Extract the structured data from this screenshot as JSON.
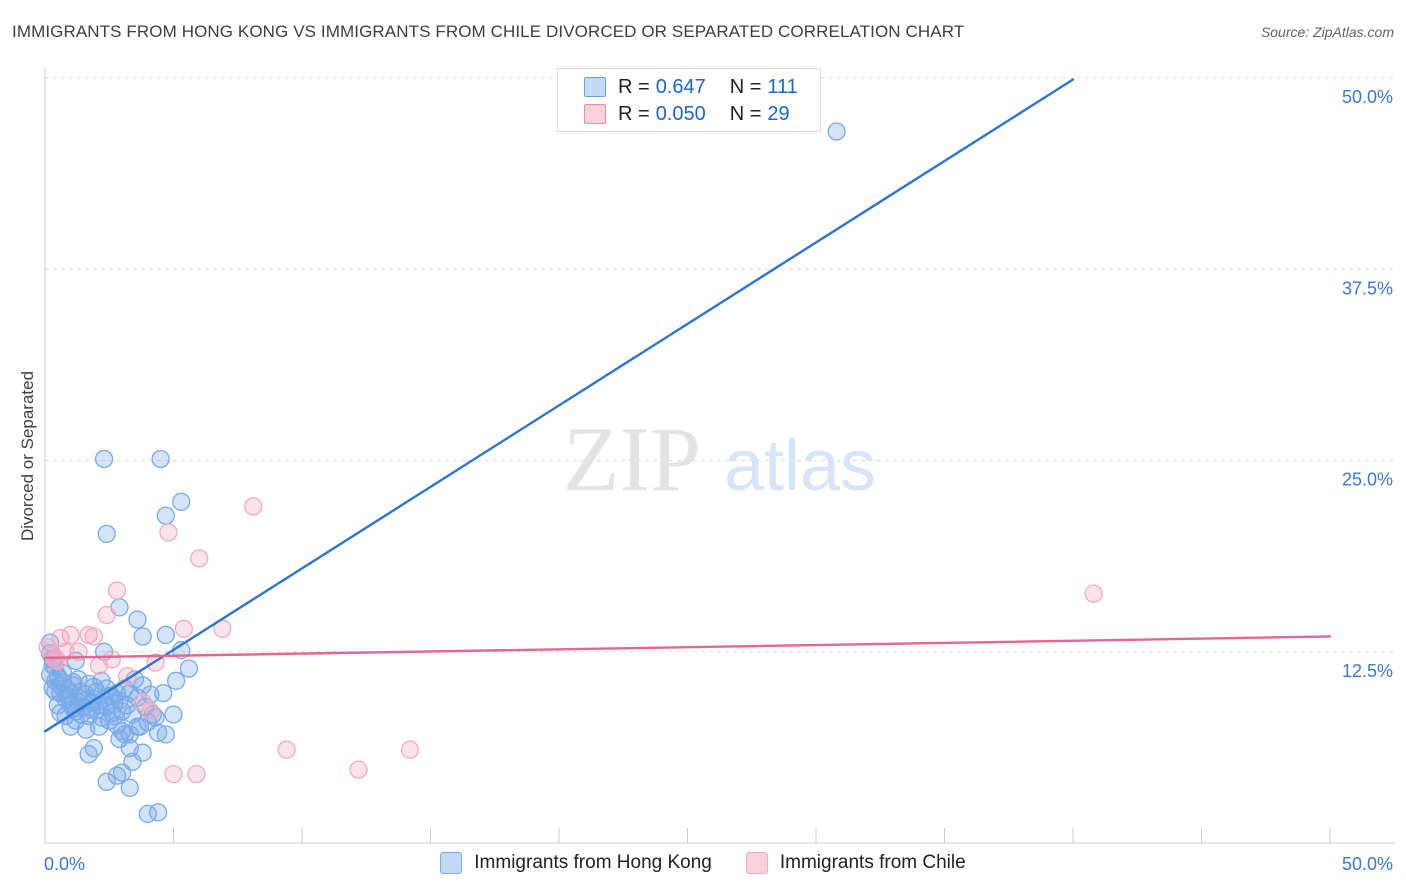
{
  "title": "IMMIGRANTS FROM HONG KONG VS IMMIGRANTS FROM CHILE DIVORCED OR SEPARATED CORRELATION CHART",
  "source": "Source: ZipAtlas.com",
  "watermark": {
    "zip": "ZIP",
    "atlas": "atlas"
  },
  "stats": [
    {
      "r_label": "R =",
      "r_value": "0.647",
      "n_label": "N =",
      "n_value": "111",
      "color": "#a8c8f0",
      "border": "#6a9fdc"
    },
    {
      "r_label": "R =",
      "r_value": "0.050",
      "n_label": "N =",
      "n_value": "29",
      "color": "#f8c4d4",
      "border": "#ee8aa8"
    }
  ],
  "chart_data": {
    "type": "scatter",
    "title": "IMMIGRANTS FROM HONG KONG VS IMMIGRANTS FROM CHILE DIVORCED OR SEPARATED CORRELATION CHART",
    "xlabel": "",
    "ylabel": "Divorced or Separated",
    "xlim": [
      0,
      50
    ],
    "ylim": [
      0,
      50
    ],
    "x_tick_labels": [
      "0.0%",
      "50.0%"
    ],
    "y_ticks": [
      12.5,
      25.0,
      37.5,
      50.0
    ],
    "y_tick_labels": [
      "12.5%",
      "25.0%",
      "37.5%",
      "50.0%"
    ],
    "grid": true,
    "legend_position": "bottom-center",
    "series": [
      {
        "name": "Immigrants from Hong Kong",
        "color": "#7aaae8",
        "line_color": "#2f74d0",
        "trend": {
          "x": [
            0,
            40
          ],
          "y": [
            7.3,
            49.9
          ]
        },
        "points": [
          [
            0.2,
            13.1
          ],
          [
            0.3,
            12.0
          ],
          [
            0.2,
            11.0
          ],
          [
            0.4,
            11.5
          ],
          [
            0.5,
            10.8
          ],
          [
            0.3,
            10.1
          ],
          [
            0.6,
            9.8
          ],
          [
            0.7,
            10.5
          ],
          [
            0.8,
            9.4
          ],
          [
            0.9,
            10.0
          ],
          [
            1.0,
            9.1
          ],
          [
            1.1,
            10.3
          ],
          [
            1.2,
            8.6
          ],
          [
            1.3,
            9.5
          ],
          [
            1.4,
            9.9
          ],
          [
            1.5,
            8.9
          ],
          [
            1.6,
            9.7
          ],
          [
            1.7,
            8.3
          ],
          [
            1.8,
            9.2
          ],
          [
            1.9,
            10.2
          ],
          [
            2.0,
            8.7
          ],
          [
            2.1,
            9.0
          ],
          [
            2.2,
            8.2
          ],
          [
            2.3,
            9.4
          ],
          [
            2.4,
            8.9
          ],
          [
            2.5,
            9.6
          ],
          [
            2.6,
            8.5
          ],
          [
            2.7,
            9.1
          ],
          [
            2.8,
            7.7
          ],
          [
            2.9,
            9.3
          ],
          [
            3.0,
            8.6
          ],
          [
            3.1,
            10.1
          ],
          [
            3.2,
            9.0
          ],
          [
            3.3,
            9.8
          ],
          [
            3.4,
            8.4
          ],
          [
            3.6,
            9.5
          ],
          [
            3.7,
            7.6
          ],
          [
            3.9,
            8.9
          ],
          [
            4.1,
            9.7
          ],
          [
            4.3,
            8.2
          ],
          [
            0.4,
            10.6
          ],
          [
            0.6,
            10.3
          ],
          [
            0.9,
            9.6
          ],
          [
            1.1,
            8.8
          ],
          [
            1.3,
            10.7
          ],
          [
            1.5,
            9.3
          ],
          [
            1.7,
            10.4
          ],
          [
            2.0,
            9.9
          ],
          [
            2.2,
            10.6
          ],
          [
            2.5,
            8.0
          ],
          [
            2.8,
            9.8
          ],
          [
            3.0,
            7.3
          ],
          [
            3.3,
            7.1
          ],
          [
            3.6,
            7.6
          ],
          [
            4.0,
            7.9
          ],
          [
            4.4,
            7.2
          ],
          [
            4.7,
            7.1
          ],
          [
            5.0,
            8.4
          ],
          [
            5.1,
            10.6
          ],
          [
            0.5,
            9.0
          ],
          [
            0.8,
            8.3
          ],
          [
            1.0,
            7.6
          ],
          [
            1.2,
            8.0
          ],
          [
            1.4,
            8.4
          ],
          [
            1.6,
            7.4
          ],
          [
            1.8,
            8.7
          ],
          [
            2.1,
            7.6
          ],
          [
            2.4,
            10.1
          ],
          [
            2.7,
            8.3
          ],
          [
            2.9,
            6.8
          ],
          [
            3.1,
            7.1
          ],
          [
            3.5,
            10.7
          ],
          [
            3.8,
            10.3
          ],
          [
            4.2,
            8.4
          ],
          [
            4.6,
            9.8
          ],
          [
            1.9,
            6.2
          ],
          [
            1.7,
            5.8
          ],
          [
            2.8,
            4.4
          ],
          [
            3.0,
            4.6
          ],
          [
            3.3,
            6.2
          ],
          [
            2.4,
            4.0
          ],
          [
            3.4,
            5.3
          ],
          [
            3.3,
            3.6
          ],
          [
            3.8,
            5.9
          ],
          [
            4.0,
            1.9
          ],
          [
            4.4,
            2.0
          ],
          [
            2.3,
            12.5
          ],
          [
            2.9,
            15.4
          ],
          [
            3.6,
            14.6
          ],
          [
            3.8,
            13.5
          ],
          [
            4.7,
            13.6
          ],
          [
            5.3,
            12.6
          ],
          [
            5.6,
            11.4
          ],
          [
            2.3,
            25.1
          ],
          [
            4.5,
            25.1
          ],
          [
            5.3,
            22.3
          ],
          [
            4.7,
            21.4
          ],
          [
            2.4,
            20.2
          ],
          [
            30.8,
            46.5
          ],
          [
            0.2,
            12.4
          ],
          [
            0.3,
            11.6
          ],
          [
            0.7,
            11.1
          ],
          [
            1.2,
            11.9
          ],
          [
            0.4,
            9.9
          ],
          [
            0.6,
            8.5
          ],
          [
            0.8,
            9.7
          ],
          [
            1.3,
            9.2
          ],
          [
            1.9,
            9.4
          ],
          [
            2.6,
            9.6
          ],
          [
            1.1,
            10.5
          ],
          [
            0.5,
            10.9
          ]
        ]
      },
      {
        "name": "Immigrants from Chile",
        "color": "#f4a9c0",
        "line_color": "#e5678e",
        "trend": {
          "x": [
            0,
            50
          ],
          "y": [
            12.1,
            13.5
          ]
        },
        "points": [
          [
            0.1,
            12.8
          ],
          [
            0.3,
            12.3
          ],
          [
            0.5,
            11.9
          ],
          [
            0.6,
            13.4
          ],
          [
            0.8,
            12.5
          ],
          [
            1.0,
            13.6
          ],
          [
            1.3,
            12.5
          ],
          [
            1.7,
            13.6
          ],
          [
            1.9,
            13.5
          ],
          [
            2.1,
            11.6
          ],
          [
            2.4,
            14.9
          ],
          [
            2.6,
            12.0
          ],
          [
            2.8,
            16.5
          ],
          [
            3.2,
            10.9
          ],
          [
            3.8,
            9.2
          ],
          [
            4.1,
            8.6
          ],
          [
            4.3,
            11.8
          ],
          [
            4.8,
            20.3
          ],
          [
            5.4,
            14.0
          ],
          [
            6.0,
            18.6
          ],
          [
            6.9,
            14.0
          ],
          [
            8.1,
            22.0
          ],
          [
            9.4,
            6.1
          ],
          [
            12.2,
            4.8
          ],
          [
            14.2,
            6.1
          ],
          [
            5.0,
            4.5
          ],
          [
            5.9,
            4.5
          ],
          [
            40.8,
            16.3
          ],
          [
            0.4,
            12.0
          ]
        ]
      }
    ]
  },
  "legend": [
    {
      "label": "Immigrants from Hong Kong",
      "color": "#c3daf6",
      "border": "#7aaae8"
    },
    {
      "label": "Immigrants from Chile",
      "color": "#fbd1de",
      "border": "#f4a9c0"
    }
  ]
}
